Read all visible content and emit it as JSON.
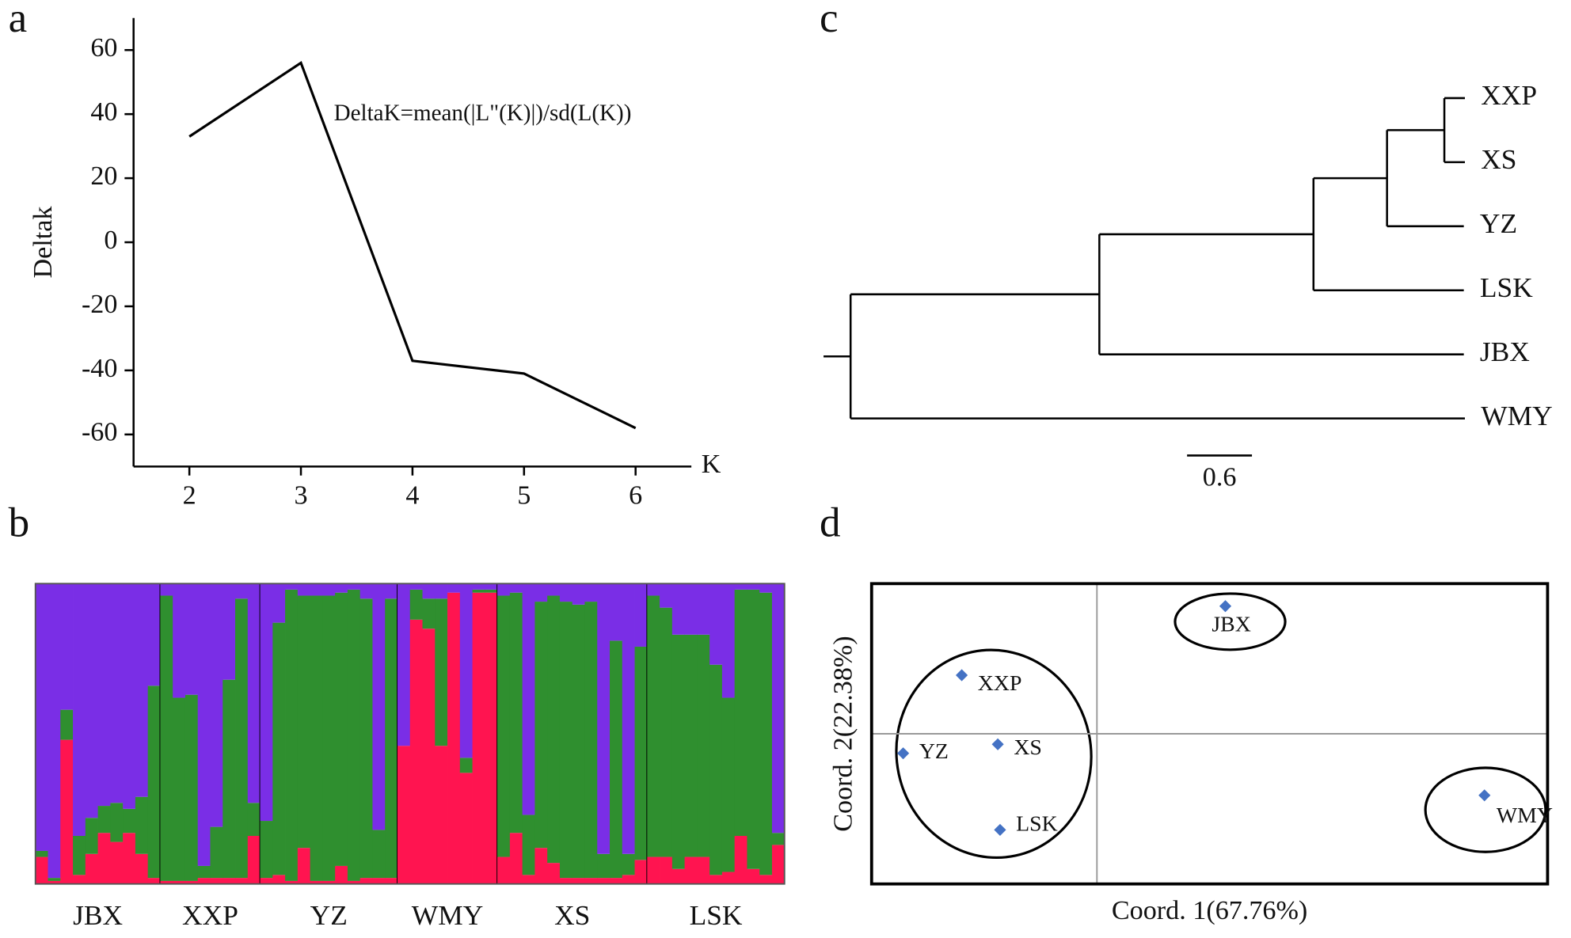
{
  "chart_data": [
    {
      "type": "line",
      "panel": "a",
      "ylabel": "Deltak",
      "xlabel": "K",
      "annotation": "DeltaK=mean(|L\"(K)|)/sd(L(K))",
      "x": [
        2,
        3,
        4,
        5,
        6
      ],
      "values": [
        33,
        56,
        -37,
        -41,
        -58
      ],
      "color": "#000000",
      "xlim": [
        1.5,
        6.5
      ],
      "xticks": [
        2,
        3,
        4,
        5,
        6
      ],
      "ylim": [
        -70,
        70
      ],
      "yticks": [
        -60,
        -40,
        -20,
        0,
        20,
        40,
        60
      ]
    },
    {
      "type": "structure",
      "panel": "b",
      "groups": [
        "JBX",
        "XXP",
        "YZ",
        "WMY",
        "XS",
        "LSK"
      ],
      "ylim": [
        0,
        1
      ],
      "series": [
        {
          "color": "#ff1450",
          "values": [
            [
              0.09,
              0.01,
              0.48,
              0.03,
              0.1,
              0.17,
              0.14,
              0.17,
              0.1,
              0.02
            ],
            [
              0.01,
              0.01,
              0.01,
              0.02,
              0.02,
              0.02,
              0.02,
              0.16
            ],
            [
              0.02,
              0.03,
              0.01,
              0.12,
              0.01,
              0.01,
              0.06,
              0.01,
              0.02,
              0.02,
              0.02
            ],
            [
              0.46,
              0.88,
              0.85,
              0.46,
              0.97,
              0.37,
              0.97,
              0.97
            ],
            [
              0.09,
              0.17,
              0.03,
              0.12,
              0.07,
              0.02,
              0.02,
              0.02,
              0.02,
              0.02,
              0.03,
              0.08
            ],
            [
              0.09,
              0.09,
              0.05,
              0.09,
              0.09,
              0.03,
              0.04,
              0.16,
              0.05,
              0.03,
              0.13
            ]
          ]
        },
        {
          "color": "#2f8f2f",
          "values": [
            [
              0.02,
              0.01,
              0.1,
              0.13,
              0.12,
              0.09,
              0.13,
              0.08,
              0.19,
              0.64
            ],
            [
              0.95,
              0.61,
              0.62,
              0.04,
              0.17,
              0.66,
              0.93,
              0.11
            ],
            [
              0.19,
              0.84,
              0.97,
              0.84,
              0.95,
              0.95,
              0.91,
              0.97,
              0.93,
              0.16,
              0.93
            ],
            [
              0.0,
              0.1,
              0.1,
              0.49,
              0.0,
              0.05,
              0.01,
              0.01
            ],
            [
              0.87,
              0.8,
              0.2,
              0.82,
              0.89,
              0.92,
              0.91,
              0.92,
              0.08,
              0.79,
              0.07,
              0.71
            ],
            [
              0.87,
              0.83,
              0.78,
              0.74,
              0.74,
              0.7,
              0.58,
              0.82,
              0.93,
              0.94,
              0.04
            ]
          ]
        },
        {
          "color": "#7a2ee6",
          "values": [
            [
              0.89,
              0.98,
              0.42,
              0.84,
              0.78,
              0.74,
              0.73,
              0.75,
              0.71,
              0.34
            ],
            [
              0.04,
              0.38,
              0.37,
              0.94,
              0.81,
              0.32,
              0.05,
              0.73
            ],
            [
              0.79,
              0.13,
              0.02,
              0.04,
              0.04,
              0.04,
              0.03,
              0.02,
              0.05,
              0.82,
              0.05
            ],
            [
              0.54,
              0.02,
              0.05,
              0.05,
              0.03,
              0.58,
              0.02,
              0.02
            ],
            [
              0.04,
              0.03,
              0.77,
              0.06,
              0.04,
              0.06,
              0.07,
              0.06,
              0.9,
              0.19,
              0.9,
              0.21
            ],
            [
              0.04,
              0.08,
              0.17,
              0.17,
              0.17,
              0.27,
              0.38,
              0.02,
              0.02,
              0.03,
              0.83
            ]
          ]
        }
      ]
    },
    {
      "type": "tree",
      "panel": "c",
      "scale_bar": 0.6,
      "tree": {
        "length": 0.25,
        "children": [
          {
            "length": 2.3,
            "children": [
              {
                "length": 1.98,
                "children": [
                  {
                    "length": 0.68,
                    "children": [
                      {
                        "length": 0.53,
                        "children": [
                          {
                            "length": 0.19,
                            "label": "XXP"
                          },
                          {
                            "length": 0.19,
                            "label": "XS"
                          }
                        ]
                      },
                      {
                        "length": 0.71,
                        "label": "YZ"
                      }
                    ]
                  },
                  {
                    "length": 1.39,
                    "label": "LSK"
                  }
                ]
              },
              {
                "length": 3.37,
                "label": "JBX"
              }
            ]
          },
          {
            "length": 5.68,
            "label": "WMY"
          }
        ]
      }
    },
    {
      "type": "scatter",
      "panel": "d",
      "xlabel": "Coord. 1(67.76%)",
      "ylabel": "Coord. 2(22.38%)",
      "labels": [
        "JBX",
        "XXP",
        "XS",
        "YZ",
        "LSK",
        "WMY"
      ],
      "x": [
        0.57,
        -0.6,
        -0.44,
        -0.86,
        -0.43,
        1.72
      ],
      "values": [
        0.85,
        0.39,
        -0.07,
        -0.13,
        -0.64,
        -0.41
      ],
      "color": "#4472c4",
      "xlim": [
        -1,
        2
      ],
      "ylim": [
        -1,
        1
      ]
    }
  ]
}
